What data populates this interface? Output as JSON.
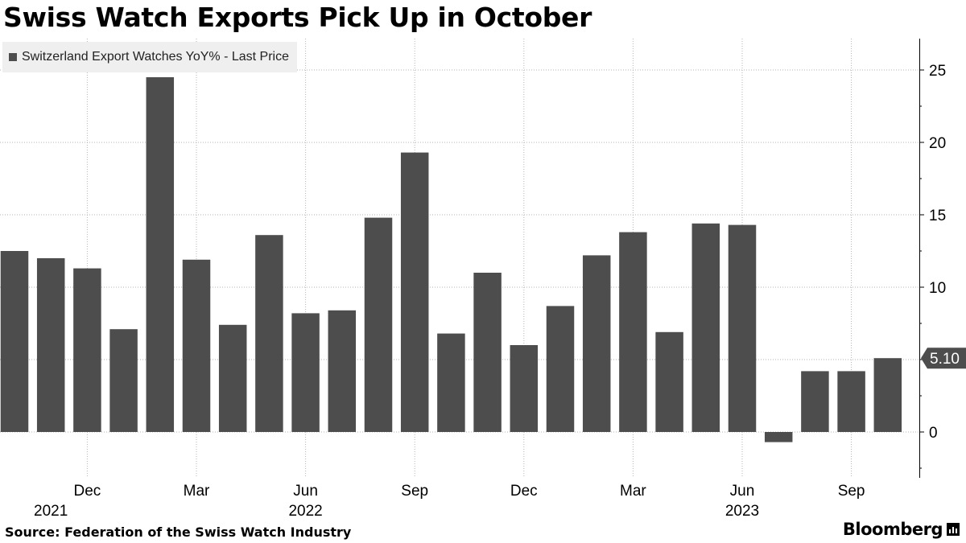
{
  "title": "Swiss Watch Exports Pick Up in October",
  "source": "Source: Federation of the Swiss Watch Industry",
  "brand": "Bloomberg",
  "brand_icon": "bar-chart-icon",
  "chart_data": {
    "type": "bar",
    "series": [
      {
        "name": "Switzerland Export Watches YoY% - Last Price",
        "color": "#4d4d4d",
        "values": [
          12.5,
          12.0,
          11.3,
          7.1,
          24.5,
          11.9,
          7.4,
          13.6,
          8.2,
          8.4,
          14.8,
          19.3,
          6.8,
          11.0,
          6.0,
          8.7,
          12.2,
          13.8,
          6.9,
          14.4,
          14.3,
          -0.7,
          4.2,
          4.2,
          5.1
        ]
      }
    ],
    "categories": [
      "2021-10",
      "2021-11",
      "2021-12",
      "2022-01",
      "2022-02",
      "2022-03",
      "2022-04",
      "2022-05",
      "2022-06",
      "2022-07",
      "2022-08",
      "2022-09",
      "2022-10",
      "2022-11",
      "2022-12",
      "2023-01",
      "2023-02",
      "2023-03",
      "2023-04",
      "2023-05",
      "2023-06",
      "2023-07",
      "2023-08",
      "2023-09",
      "2023-10"
    ],
    "x_tick_labels": [
      {
        "index": 2,
        "label": "Dec"
      },
      {
        "index": 5,
        "label": "Mar"
      },
      {
        "index": 8,
        "label": "Jun"
      },
      {
        "index": 11,
        "label": "Sep"
      },
      {
        "index": 14,
        "label": "Dec"
      },
      {
        "index": 17,
        "label": "Mar"
      },
      {
        "index": 20,
        "label": "Jun"
      },
      {
        "index": 23,
        "label": "Sep"
      }
    ],
    "year_labels": [
      {
        "index": 1,
        "label": "2021"
      },
      {
        "index": 8,
        "label": "2022"
      },
      {
        "index": 20,
        "label": "2023"
      }
    ],
    "y_ticks": [
      0,
      5,
      10,
      15,
      20,
      25
    ],
    "ylim": [
      -3,
      27
    ],
    "last_value_label": "5.10",
    "grid": "horizontal-and-vertical-dotted",
    "y_axis_position": "right",
    "legend_position": "top-left"
  }
}
